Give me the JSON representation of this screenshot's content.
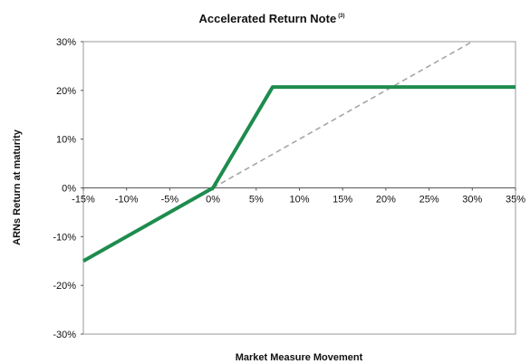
{
  "chart_data": {
    "type": "line",
    "title": "Accelerated Return Note",
    "title_footnote": "(3)",
    "xlabel": "Market Measure Movement",
    "ylabel": "ARNs Return at maturity",
    "xlim": [
      -15,
      35
    ],
    "ylim": [
      -30,
      30
    ],
    "x_ticks": [
      "-15%",
      "-10%",
      "-5%",
      "0%",
      "5%",
      "10%",
      "15%",
      "20%",
      "25%",
      "30%",
      "35%"
    ],
    "y_ticks": [
      "30%",
      "20%",
      "10%",
      "0%",
      "-10%",
      "-20%",
      "-30%"
    ],
    "grid": false,
    "legend": "none",
    "series": [
      {
        "style": "solid",
        "color": "#1e8c4e",
        "x": [
          -15,
          0,
          6.9,
          35
        ],
        "y": [
          -15,
          0,
          20.7,
          20.7
        ]
      },
      {
        "style": "dashed",
        "color": "#a6a6a6",
        "x": [
          0,
          30
        ],
        "y": [
          0,
          30
        ]
      }
    ]
  }
}
